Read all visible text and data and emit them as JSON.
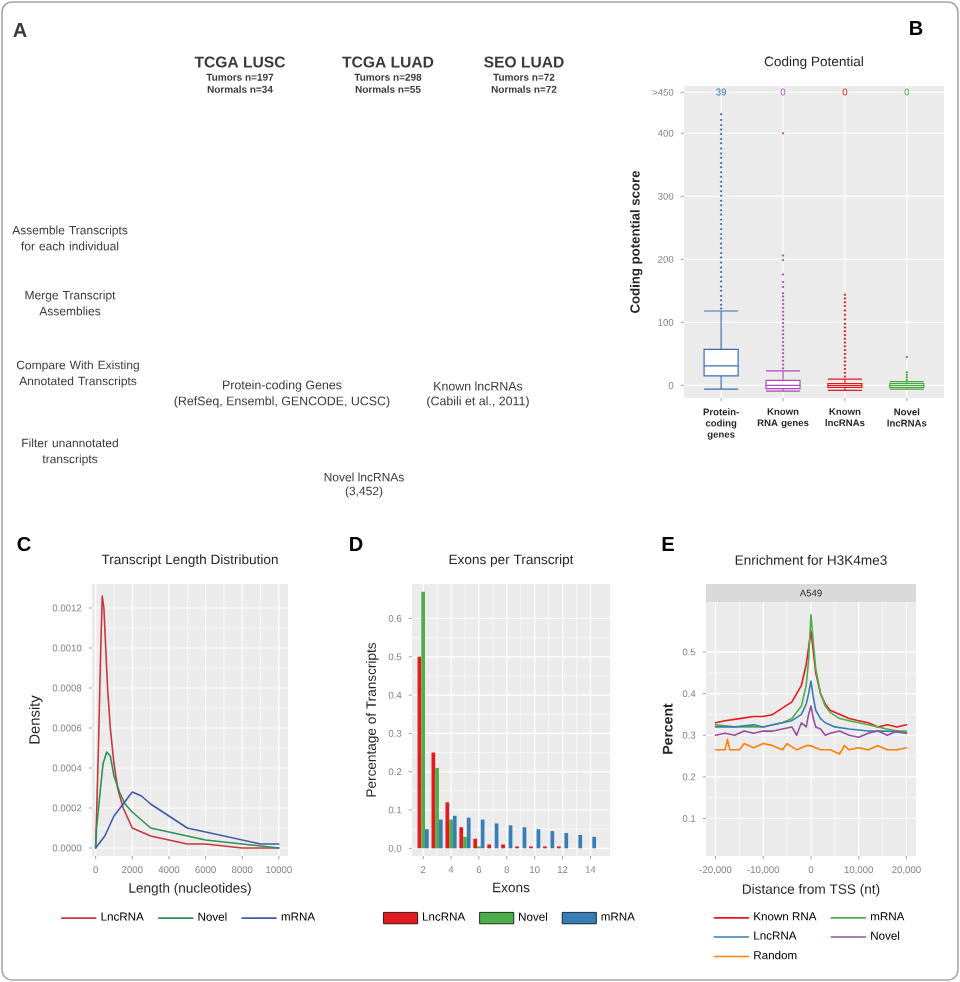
{
  "chart_data": [
    {
      "type": "other",
      "annotations": [
        "A",
        "TCGA LUSC",
        "Tumors n=197",
        "Normals n=34",
        "TCGA LUAD",
        "Tumors n=298",
        "Normals n=55",
        "SEO LUAD",
        "Tumors n=72",
        "Normals n=72",
        "Assemble Transcripts for each individual",
        "Merge Transcript Assemblies",
        "Compare With Existing Annotated Transcripts",
        "Protein-coding Genes",
        "(RefSeq, Ensembl, GENCODE, UCSC)",
        "Known lncRNAs",
        "(Cabili et al., 2011)",
        "Filter unannotated transcripts",
        "Novel lncRNAs",
        "(3,452)"
      ]
    },
    {
      "type": "box",
      "title": "Coding Potential",
      "ylabel": "Coding potential score",
      "categories": [
        "Protein-coding genes",
        "Known RNA genes",
        "Known lncRNAs",
        "Novel lncRNAs"
      ],
      "colors": [
        "#3a6db4",
        "#b04db5",
        "#e31a1c",
        "#4aa842"
      ],
      "boxes": [
        {
          "low": -6,
          "q1": 15,
          "median": 31,
          "q3": 57,
          "high": 118,
          "outliers": [
            122,
            128,
            135,
            142,
            150,
            157,
            165,
            172,
            180,
            187,
            195,
            203,
            210,
            218,
            225,
            233,
            240,
            248,
            256,
            263,
            271,
            278,
            286,
            293,
            301,
            308,
            316,
            323,
            331,
            338,
            346,
            353,
            361,
            368,
            376,
            384,
            391,
            399,
            406,
            413,
            421,
            430
          ]
        },
        {
          "low": -9,
          "q1": -5,
          "median": 0,
          "q3": 8,
          "high": 23,
          "outliers": [
            27,
            33,
            39,
            45,
            51,
            57,
            63,
            69,
            75,
            81,
            87,
            93,
            99,
            105,
            111,
            117,
            123,
            129,
            135,
            141,
            146,
            156,
            164,
            176,
            199,
            206,
            400
          ]
        },
        {
          "low": -8,
          "q1": -3,
          "median": 0,
          "q3": 3,
          "high": 10,
          "outliers": [
            14,
            20,
            26,
            32,
            38,
            44,
            50,
            56,
            62,
            68,
            74,
            80,
            86,
            92,
            98,
            105,
            112,
            119,
            126,
            132,
            138,
            144
          ]
        },
        {
          "low": -6,
          "q1": -3,
          "median": 0,
          "q3": 3,
          "high": 6,
          "outliers": [
            9,
            13,
            17,
            21,
            45
          ]
        }
      ],
      "ylim": [
        -20,
        475
      ],
      "yticks": [
        0,
        100,
        200,
        300,
        400,
        {
          "value": 465,
          "label": ">450"
        }
      ],
      "grid": true,
      "annotations": [
        "B",
        "39",
        "0",
        "0",
        "0"
      ]
    },
    {
      "type": "line",
      "title": "Transcript Length Distribution",
      "xlabel": "Length (nucleotides)",
      "ylabel": "Density",
      "series": [
        {
          "name": "LncRNA",
          "color": "#c8373a",
          "x": [
            0,
            150,
            280,
            360,
            450,
            550,
            650,
            800,
            1000,
            1200,
            1500,
            2000,
            2500,
            3000,
            4000,
            5000,
            6000,
            8000,
            10000
          ],
          "values": [
            0,
            0.0005,
            0.001,
            0.00126,
            0.0012,
            0.001,
            0.0008,
            0.0006,
            0.00042,
            0.0003,
            0.0002,
            0.0001,
            8e-05,
            6e-05,
            4e-05,
            2e-05,
            2e-05,
            0,
            0
          ]
        },
        {
          "name": "Novel",
          "color": "#2f8f55",
          "x": [
            0,
            50,
            200,
            400,
            600,
            800,
            1000,
            1300,
            1600,
            2000,
            2500,
            3000,
            4000,
            5000,
            6000,
            8000,
            10000
          ],
          "values": [
            0,
            0.0001,
            0.00024,
            0.00042,
            0.00048,
            0.00046,
            0.00036,
            0.00028,
            0.00022,
            0.00018,
            0.00014,
            0.0001,
            8e-05,
            6e-05,
            4e-05,
            2e-05,
            0
          ]
        },
        {
          "name": "mRNA",
          "color": "#3e5aab",
          "x": [
            0,
            500,
            1000,
            1500,
            2000,
            2500,
            3000,
            4000,
            5000,
            6000,
            7000,
            8000,
            9000,
            10000
          ],
          "values": [
            0,
            6e-05,
            0.00016,
            0.00022,
            0.00028,
            0.00026,
            0.00022,
            0.00016,
            0.0001,
            8e-05,
            6e-05,
            4e-05,
            2e-05,
            2e-05
          ]
        }
      ],
      "xlim": [
        -200,
        10500
      ],
      "xticks": [
        0,
        2000,
        4000,
        6000,
        8000,
        10000
      ],
      "ylim": [
        -4e-05,
        0.00132
      ],
      "yticks": [
        {
          "value": 0,
          "label": "0.0000"
        },
        0.0002,
        0.0004,
        0.0006,
        0.0008,
        {
          "value": 0.001,
          "label": "0.0010"
        },
        0.0012
      ],
      "grid": true,
      "legend": "bottom",
      "annotations": [
        "C"
      ]
    },
    {
      "type": "bar",
      "title": "Exons per Transcript",
      "xlabel": "Exons",
      "ylabel": "Percentage of Transcripts",
      "x": [
        2,
        3,
        4,
        5,
        6,
        7,
        8,
        9,
        10,
        11,
        12,
        13,
        14
      ],
      "series": [
        {
          "name": "LncRNA",
          "color": "#e41a1c",
          "values": [
            0.5,
            0.25,
            0.12,
            0.055,
            0.025,
            0.01,
            0.01,
            0.005,
            0.005,
            0.005,
            0.005,
            null,
            null
          ]
        },
        {
          "name": "Novel",
          "color": "#4daf4a",
          "values": [
            0.67,
            0.21,
            0.075,
            0.03,
            0.005,
            null,
            null,
            null,
            null,
            null,
            null,
            null,
            null
          ]
        },
        {
          "name": "mRNA",
          "color": "#377eb8",
          "values": [
            0.05,
            0.075,
            0.085,
            0.08,
            0.075,
            0.065,
            0.06,
            0.055,
            0.05,
            0.045,
            0.04,
            0.035,
            0.03
          ]
        }
      ],
      "xlim": [
        1.2,
        15.4
      ],
      "xticks": [
        2,
        4,
        6,
        8,
        10,
        12,
        14
      ],
      "ylim": [
        -0.02,
        0.69
      ],
      "yticks": [
        {
          "value": 0,
          "label": "0.0"
        },
        0.1,
        0.2,
        0.3,
        0.4,
        0.5,
        0.6
      ],
      "grid": true,
      "legend": "bottom",
      "annotations": [
        "D"
      ]
    },
    {
      "type": "line",
      "title": "Enrichment for H3K4me3",
      "subtitle": "A549",
      "xlabel": "Distance from TSS (nt)",
      "ylabel": "Percent",
      "series": [
        {
          "name": "Known RNA",
          "color": "#e41a1c",
          "x": [
            -20000,
            -18000,
            -15000,
            -12000,
            -10000,
            -8000,
            -6000,
            -4000,
            -2000,
            -1000,
            -500,
            0,
            500,
            1000,
            2000,
            3000,
            4000,
            6000,
            8000,
            10000,
            12000,
            14000,
            16000,
            18000,
            20000
          ],
          "values": [
            0.33,
            0.335,
            0.34,
            0.345,
            0.345,
            0.35,
            0.365,
            0.38,
            0.42,
            0.47,
            0.51,
            0.55,
            0.5,
            0.45,
            0.4,
            0.375,
            0.36,
            0.35,
            0.34,
            0.335,
            0.33,
            0.32,
            0.325,
            0.32,
            0.325
          ]
        },
        {
          "name": "mRNA",
          "color": "#4daf4a",
          "x": [
            -20000,
            -16000,
            -12000,
            -10000,
            -8000,
            -6000,
            -4000,
            -2000,
            -1000,
            -500,
            0,
            500,
            1000,
            2000,
            3000,
            4000,
            6000,
            8000,
            10000,
            12000,
            14000,
            16000,
            18000,
            20000
          ],
          "values": [
            0.325,
            0.32,
            0.32,
            0.32,
            0.325,
            0.33,
            0.34,
            0.37,
            0.42,
            0.48,
            0.59,
            0.52,
            0.46,
            0.4,
            0.37,
            0.355,
            0.34,
            0.335,
            0.33,
            0.325,
            0.32,
            0.315,
            0.31,
            0.31
          ]
        },
        {
          "name": "LncRNA",
          "color": "#377eb8",
          "x": [
            -20000,
            -16000,
            -12000,
            -10000,
            -8000,
            -6000,
            -4000,
            -2000,
            -1000,
            -500,
            0,
            500,
            1000,
            2000,
            3000,
            5000,
            8000,
            12000,
            16000,
            20000
          ],
          "values": [
            0.32,
            0.32,
            0.325,
            0.32,
            0.325,
            0.33,
            0.335,
            0.35,
            0.375,
            0.4,
            0.43,
            0.39,
            0.36,
            0.34,
            0.33,
            0.32,
            0.315,
            0.31,
            0.31,
            0.305
          ]
        },
        {
          "name": "Novel",
          "color": "#984ea3",
          "x": [
            -20000,
            -18000,
            -16000,
            -14000,
            -12000,
            -10000,
            -8000,
            -6000,
            -4000,
            -3000,
            -2000,
            -1000,
            -500,
            0,
            500,
            1000,
            2000,
            3000,
            4000,
            6000,
            8000,
            10000,
            12000,
            14000,
            16000,
            18000,
            20000
          ],
          "values": [
            0.3,
            0.305,
            0.3,
            0.31,
            0.305,
            0.31,
            0.31,
            0.315,
            0.32,
            0.3,
            0.33,
            0.32,
            0.35,
            0.37,
            0.34,
            0.32,
            0.315,
            0.3,
            0.305,
            0.31,
            0.3,
            0.295,
            0.305,
            0.31,
            0.3,
            0.31,
            0.305
          ]
        },
        {
          "name": "Random",
          "color": "#ff7f00",
          "x": [
            -20000,
            -19000,
            -18000,
            -17500,
            -17000,
            -15000,
            -14000,
            -12000,
            -10000,
            -8000,
            -6000,
            -5000,
            -3000,
            -1000,
            0,
            2000,
            4000,
            6000,
            7000,
            8000,
            10000,
            12000,
            14000,
            16000,
            18000,
            20000
          ],
          "values": [
            0.265,
            0.265,
            0.265,
            0.29,
            0.265,
            0.265,
            0.28,
            0.27,
            0.28,
            0.275,
            0.265,
            0.28,
            0.265,
            0.275,
            0.275,
            0.265,
            0.265,
            0.255,
            0.275,
            0.265,
            0.27,
            0.265,
            0.275,
            0.265,
            0.265,
            0.27
          ]
        }
      ],
      "xlim": [
        -22000,
        22000
      ],
      "xticks": [
        {
          "value": -20000,
          "label": "-20,000"
        },
        {
          "value": -10000,
          "label": "-10,000"
        },
        0,
        {
          "value": 10000,
          "label": "10,000"
        },
        {
          "value": 20000,
          "label": "20,000"
        }
      ],
      "ylim": [
        0.01,
        0.62
      ],
      "yticks": [
        0.1,
        0.2,
        0.3,
        0.4,
        0.5
      ],
      "grid": true,
      "legend": "bottom",
      "annotations": [
        "E"
      ]
    }
  ]
}
